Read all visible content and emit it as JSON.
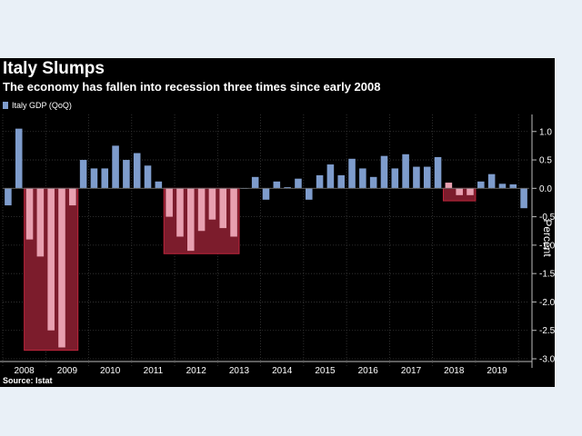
{
  "chart_data": {
    "type": "bar",
    "title": "Italy Slumps",
    "subtitle": "The economy has fallen into recession three times since early 2008",
    "source": "Source: Istat",
    "xlabel": "",
    "ylabel": "Percent",
    "ylim": [
      -3.0,
      1.3
    ],
    "yticks": [
      1.0,
      0.5,
      0.0,
      -0.5,
      -1.0,
      -1.5,
      -2.0,
      -2.5,
      -3.0
    ],
    "ytick_labels": [
      "1.0",
      "0.5",
      "0.0",
      "-0.5",
      "-1.0",
      "-1.5",
      "-2.0",
      "-2.5",
      "-3.0"
    ],
    "year_labels": [
      "2008",
      "2009",
      "2010",
      "2011",
      "2012",
      "2013",
      "2014",
      "2015",
      "2016",
      "2017",
      "2018",
      "2019"
    ],
    "grid": true,
    "legend_position": "top-left",
    "series": [
      {
        "name": "Italy GDP (QoQ)",
        "color": "#7e9ccc",
        "recession_bar_color": "#e8a0b0",
        "values": [
          -0.3,
          1.05,
          -0.9,
          -1.2,
          -2.5,
          -2.8,
          -0.3,
          0.5,
          0.35,
          0.35,
          0.75,
          0.5,
          0.62,
          0.4,
          0.12,
          -0.5,
          -0.85,
          -1.1,
          -0.75,
          -0.55,
          -0.7,
          -0.85,
          0.0,
          0.2,
          -0.2,
          0.12,
          0.02,
          0.17,
          -0.2,
          0.23,
          0.42,
          0.23,
          0.52,
          0.35,
          0.2,
          0.57,
          0.35,
          0.6,
          0.38,
          0.38,
          0.55,
          0.1,
          -0.12,
          -0.12,
          0.12,
          0.25,
          0.08,
          0.07,
          -0.35
        ]
      }
    ],
    "recessions": [
      {
        "start_index": 2,
        "end_index": 6,
        "bottom": -2.85,
        "color": "#7c1c2c",
        "border": "#c0253c"
      },
      {
        "start_index": 15,
        "end_index": 21,
        "bottom": -1.15,
        "color": "#7c1c2c",
        "border": "#c0253c"
      },
      {
        "start_index": 41,
        "end_index": 43,
        "bottom": -0.22,
        "color": "#7c1c2c",
        "border": "#c0253c"
      }
    ]
  }
}
